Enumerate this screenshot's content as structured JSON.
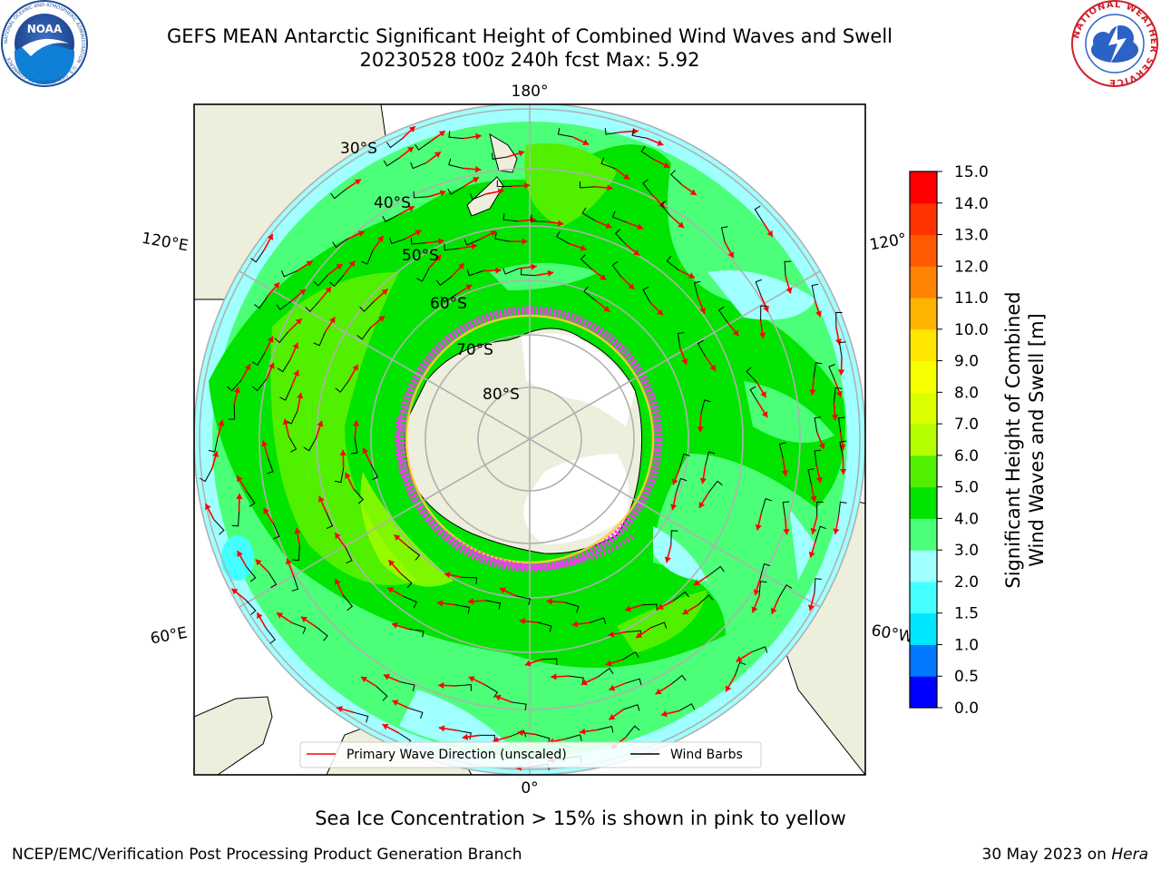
{
  "title": {
    "line1": "GEFS MEAN Antarctic Significant Height of Combined Wind Waves and Swell",
    "line2": "20230528 t00z 240h fcst   Max: 5.92"
  },
  "logos": {
    "left": {
      "name": "NOAA",
      "ring_text": "NATIONAL OCEANIC AND ATMOSPHERIC ADMINISTRATION · U.S. DEPARTMENT OF COMMERCE",
      "colors": {
        "ring": "#1f4f9a",
        "water": "#0f80d6",
        "bird": "#ffffff"
      }
    },
    "right": {
      "name": "National Weather Service",
      "ring_text": "NATIONAL WEATHER SERVICE",
      "colors": {
        "ring": "#d0202a",
        "cloud": "#2a62c6"
      }
    }
  },
  "map": {
    "projection": "south-polar-stereographic",
    "longitude_labels": {
      "top": "180°",
      "left_upper": "120°E",
      "right_upper": "120°",
      "left_lower": "60°E",
      "right_lower": "60°W",
      "bottom": "0°"
    },
    "latitude_labels": [
      "30°S",
      "40°S",
      "50°S",
      "60°S",
      "70°S",
      "80°S"
    ],
    "colors": {
      "land": "#eeeedd",
      "coast": "#000000",
      "grid": "#b0b0b0",
      "arrow": "#ff0000",
      "barb": "#000000",
      "ice_pink": "#ff33ff",
      "ice_yellow": "#ffcc33"
    }
  },
  "colorbar": {
    "label_line1": "Significant Height of Combined",
    "label_line2": "Wind Waves and Swell [m]",
    "ticks": [
      "0.0",
      "0.5",
      "1.0",
      "1.5",
      "2.0",
      "3.0",
      "4.0",
      "5.0",
      "6.0",
      "7.0",
      "8.0",
      "9.0",
      "10.0",
      "11.0",
      "12.0",
      "13.0",
      "14.0",
      "15.0"
    ],
    "colors": [
      "#0000ff",
      "#0078ff",
      "#00e6ff",
      "#44ffff",
      "#a0ffff",
      "#4cff78",
      "#00e400",
      "#50f000",
      "#b4ff00",
      "#dcff00",
      "#f8ff00",
      "#ffe600",
      "#ffb400",
      "#ff8200",
      "#ff5a00",
      "#ff3200",
      "#ff0000"
    ]
  },
  "legend": {
    "wave": "Primary Wave Direction (unscaled)",
    "wind": "Wind Barbs"
  },
  "subtitle": "Sea Ice Concentration > 15% is shown in pink to yellow",
  "footer": {
    "left": "NCEP/EMC/Verification Post Processing Product Generation Branch",
    "right_date": "30 May 2023 on",
    "right_host": "Hera"
  }
}
